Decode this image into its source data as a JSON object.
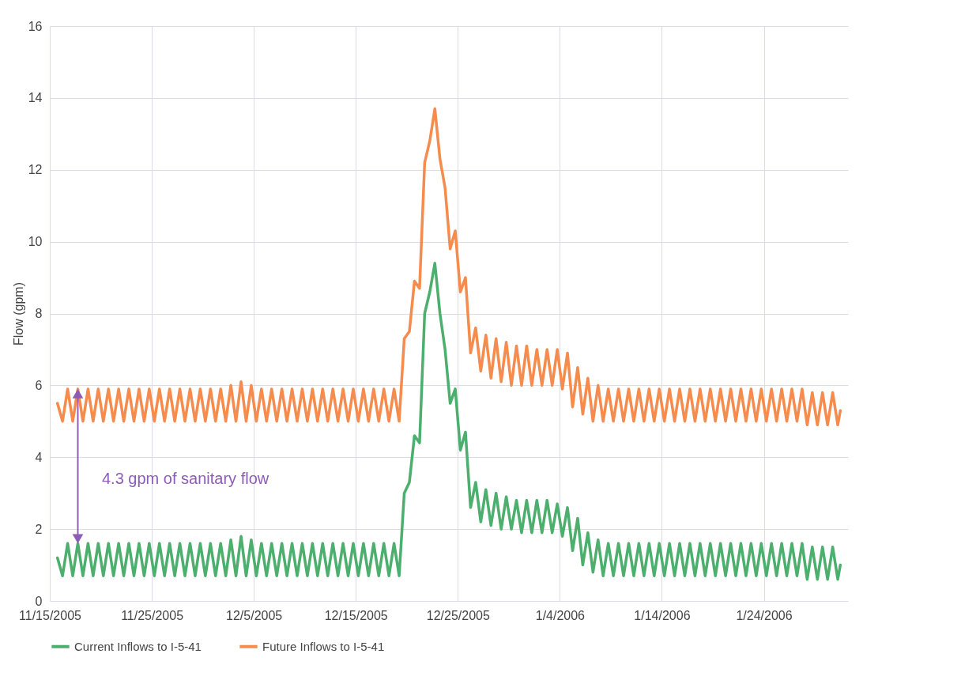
{
  "chart_data": {
    "type": "line",
    "ylabel": "Flow (gpm)",
    "x": [
      "2005-11-15T18:00",
      "2005-11-16T06:00",
      "2005-11-16T18:00",
      "2005-11-17T06:00",
      "2005-11-17T18:00",
      "2005-11-18T06:00",
      "2005-11-18T18:00",
      "2005-11-19T06:00",
      "2005-11-19T18:00",
      "2005-11-20T06:00",
      "2005-11-20T18:00",
      "2005-11-21T06:00",
      "2005-11-21T18:00",
      "2005-11-22T06:00",
      "2005-11-22T18:00",
      "2005-11-23T06:00",
      "2005-11-23T18:00",
      "2005-11-24T06:00",
      "2005-11-24T18:00",
      "2005-11-25T06:00",
      "2005-11-25T18:00",
      "2005-11-26T06:00",
      "2005-11-26T18:00",
      "2005-11-27T06:00",
      "2005-11-27T18:00",
      "2005-11-28T06:00",
      "2005-11-28T18:00",
      "2005-11-29T06:00",
      "2005-11-29T18:00",
      "2005-11-30T06:00",
      "2005-11-30T18:00",
      "2005-12-01T06:00",
      "2005-12-01T18:00",
      "2005-12-02T06:00",
      "2005-12-02T18:00",
      "2005-12-03T06:00",
      "2005-12-03T18:00",
      "2005-12-04T06:00",
      "2005-12-04T18:00",
      "2005-12-05T06:00",
      "2005-12-05T18:00",
      "2005-12-06T06:00",
      "2005-12-06T18:00",
      "2005-12-07T06:00",
      "2005-12-07T18:00",
      "2005-12-08T06:00",
      "2005-12-08T18:00",
      "2005-12-09T06:00",
      "2005-12-09T18:00",
      "2005-12-10T06:00",
      "2005-12-10T18:00",
      "2005-12-11T06:00",
      "2005-12-11T18:00",
      "2005-12-12T06:00",
      "2005-12-12T18:00",
      "2005-12-13T06:00",
      "2005-12-13T18:00",
      "2005-12-14T06:00",
      "2005-12-14T18:00",
      "2005-12-15T06:00",
      "2005-12-15T18:00",
      "2005-12-16T06:00",
      "2005-12-16T18:00",
      "2005-12-17T06:00",
      "2005-12-17T18:00",
      "2005-12-18T06:00",
      "2005-12-18T18:00",
      "2005-12-19T06:00",
      "2005-12-19T18:00",
      "2005-12-20T06:00",
      "2005-12-20T18:00",
      "2005-12-21T06:00",
      "2005-12-21T18:00",
      "2005-12-22T06:00",
      "2005-12-22T18:00",
      "2005-12-23T06:00",
      "2005-12-23T18:00",
      "2005-12-24T06:00",
      "2005-12-24T18:00",
      "2005-12-25T06:00",
      "2005-12-25T18:00",
      "2005-12-26T06:00",
      "2005-12-26T18:00",
      "2005-12-27T06:00",
      "2005-12-27T18:00",
      "2005-12-28T06:00",
      "2005-12-28T18:00",
      "2005-12-29T06:00",
      "2005-12-29T18:00",
      "2005-12-30T06:00",
      "2005-12-30T18:00",
      "2005-12-31T06:00",
      "2005-12-31T18:00",
      "2006-01-01T06:00",
      "2006-01-01T18:00",
      "2006-01-02T06:00",
      "2006-01-02T18:00",
      "2006-01-03T06:00",
      "2006-01-03T18:00",
      "2006-01-04T06:00",
      "2006-01-04T18:00",
      "2006-01-05T06:00",
      "2006-01-05T18:00",
      "2006-01-06T06:00",
      "2006-01-06T18:00",
      "2006-01-07T06:00",
      "2006-01-07T18:00",
      "2006-01-08T06:00",
      "2006-01-08T18:00",
      "2006-01-09T06:00",
      "2006-01-09T18:00",
      "2006-01-10T06:00",
      "2006-01-10T18:00",
      "2006-01-11T06:00",
      "2006-01-11T18:00",
      "2006-01-12T06:00",
      "2006-01-12T18:00",
      "2006-01-13T06:00",
      "2006-01-13T18:00",
      "2006-01-14T06:00",
      "2006-01-14T18:00",
      "2006-01-15T06:00",
      "2006-01-15T18:00",
      "2006-01-16T06:00",
      "2006-01-16T18:00",
      "2006-01-17T06:00",
      "2006-01-17T18:00",
      "2006-01-18T06:00",
      "2006-01-18T18:00",
      "2006-01-19T06:00",
      "2006-01-19T18:00",
      "2006-01-20T06:00",
      "2006-01-20T18:00",
      "2006-01-21T06:00",
      "2006-01-21T18:00",
      "2006-01-22T06:00",
      "2006-01-22T18:00",
      "2006-01-23T06:00",
      "2006-01-23T18:00",
      "2006-01-24T06:00",
      "2006-01-24T18:00",
      "2006-01-25T06:00",
      "2006-01-25T18:00",
      "2006-01-26T06:00",
      "2006-01-26T18:00",
      "2006-01-27T06:00",
      "2006-01-27T18:00",
      "2006-01-28T06:00",
      "2006-01-28T18:00",
      "2006-01-29T06:00",
      "2006-01-29T18:00",
      "2006-01-30T06:00",
      "2006-01-30T18:00",
      "2006-01-31T06:00",
      "2006-01-31T12:00"
    ],
    "series": [
      {
        "name": "Current Inflows to I-5-41",
        "color": "#4caf6e",
        "values": [
          1.2,
          0.7,
          1.6,
          0.7,
          1.6,
          0.7,
          1.6,
          0.7,
          1.6,
          0.7,
          1.6,
          0.7,
          1.6,
          0.7,
          1.6,
          0.7,
          1.6,
          0.7,
          1.6,
          0.7,
          1.6,
          0.7,
          1.6,
          0.7,
          1.6,
          0.7,
          1.6,
          0.7,
          1.6,
          0.7,
          1.6,
          0.7,
          1.6,
          0.7,
          1.7,
          0.7,
          1.8,
          0.7,
          1.7,
          0.7,
          1.6,
          0.7,
          1.6,
          0.7,
          1.6,
          0.7,
          1.6,
          0.7,
          1.6,
          0.7,
          1.6,
          0.7,
          1.6,
          0.7,
          1.6,
          0.7,
          1.6,
          0.7,
          1.6,
          0.7,
          1.6,
          0.7,
          1.6,
          0.7,
          1.6,
          0.7,
          1.6,
          0.7,
          3.0,
          3.3,
          4.6,
          4.4,
          8.0,
          8.6,
          9.4,
          8.0,
          7.0,
          5.5,
          5.9,
          4.2,
          4.7,
          2.6,
          3.3,
          2.2,
          3.1,
          2.1,
          3.0,
          2.0,
          2.9,
          2.0,
          2.8,
          1.9,
          2.8,
          1.9,
          2.8,
          1.9,
          2.8,
          1.9,
          2.7,
          1.8,
          2.6,
          1.4,
          2.3,
          1.0,
          1.9,
          0.8,
          1.7,
          0.7,
          1.6,
          0.7,
          1.6,
          0.7,
          1.6,
          0.7,
          1.6,
          0.7,
          1.6,
          0.7,
          1.6,
          0.7,
          1.6,
          0.7,
          1.6,
          0.7,
          1.6,
          0.7,
          1.6,
          0.7,
          1.6,
          0.7,
          1.6,
          0.7,
          1.6,
          0.7,
          1.6,
          0.7,
          1.6,
          0.7,
          1.6,
          0.7,
          1.6,
          0.7,
          1.6,
          0.7,
          1.6,
          0.7,
          1.6,
          0.6,
          1.5,
          0.6,
          1.5,
          0.6,
          1.5,
          0.6,
          1.0
        ]
      },
      {
        "name": "Future Inflows to I-5-41",
        "color": "#f58b4c",
        "values": [
          5.5,
          5.0,
          5.9,
          5.0,
          5.9,
          5.0,
          5.9,
          5.0,
          5.9,
          5.0,
          5.9,
          5.0,
          5.9,
          5.0,
          5.9,
          5.0,
          5.9,
          5.0,
          5.9,
          5.0,
          5.9,
          5.0,
          5.9,
          5.0,
          5.9,
          5.0,
          5.9,
          5.0,
          5.9,
          5.0,
          5.9,
          5.0,
          5.9,
          5.0,
          6.0,
          5.0,
          6.1,
          5.0,
          6.0,
          5.0,
          5.9,
          5.0,
          5.9,
          5.0,
          5.9,
          5.0,
          5.9,
          5.0,
          5.9,
          5.0,
          5.9,
          5.0,
          5.9,
          5.0,
          5.9,
          5.0,
          5.9,
          5.0,
          5.9,
          5.0,
          5.9,
          5.0,
          5.9,
          5.0,
          5.9,
          5.0,
          5.9,
          5.0,
          7.3,
          7.5,
          8.9,
          8.7,
          12.2,
          12.8,
          13.7,
          12.3,
          11.5,
          9.8,
          10.3,
          8.6,
          9.0,
          6.9,
          7.6,
          6.4,
          7.4,
          6.2,
          7.3,
          6.1,
          7.2,
          6.0,
          7.1,
          6.0,
          7.1,
          6.0,
          7.0,
          6.0,
          7.0,
          6.0,
          7.0,
          5.9,
          6.9,
          5.4,
          6.5,
          5.2,
          6.2,
          5.0,
          6.0,
          5.0,
          5.9,
          5.0,
          5.9,
          5.0,
          5.9,
          5.0,
          5.9,
          5.0,
          5.9,
          5.0,
          5.9,
          5.0,
          5.9,
          5.0,
          5.9,
          5.0,
          5.9,
          5.0,
          5.9,
          5.0,
          5.9,
          5.0,
          5.9,
          5.0,
          5.9,
          5.0,
          5.9,
          5.0,
          5.9,
          5.0,
          5.9,
          5.0,
          5.9,
          5.0,
          5.9,
          5.0,
          5.9,
          5.0,
          5.9,
          4.9,
          5.8,
          4.9,
          5.8,
          4.9,
          5.8,
          4.9,
          5.3
        ]
      }
    ],
    "xlim": [
      "2005-11-15",
      "2006-02-01T06:00"
    ],
    "xticks": [
      {
        "value": "2005-11-15",
        "label": "11/15/2005"
      },
      {
        "value": "2005-11-25",
        "label": "11/25/2005"
      },
      {
        "value": "2005-12-05",
        "label": "12/5/2005"
      },
      {
        "value": "2005-12-15",
        "label": "12/15/2005"
      },
      {
        "value": "2005-12-25",
        "label": "12/25/2005"
      },
      {
        "value": "2006-01-04",
        "label": "1/4/2006"
      },
      {
        "value": "2006-01-14",
        "label": "1/14/2006"
      },
      {
        "value": "2006-01-24",
        "label": "1/24/2006"
      }
    ],
    "ylim": [
      0,
      16
    ],
    "yticks": [
      0,
      2,
      4,
      6,
      8,
      10,
      12,
      14,
      16
    ],
    "annotations": [
      "4.3 gpm of sanitary flow"
    ],
    "grid": true,
    "legend": "bottom",
    "marker": "none",
    "line_style": "solid"
  }
}
